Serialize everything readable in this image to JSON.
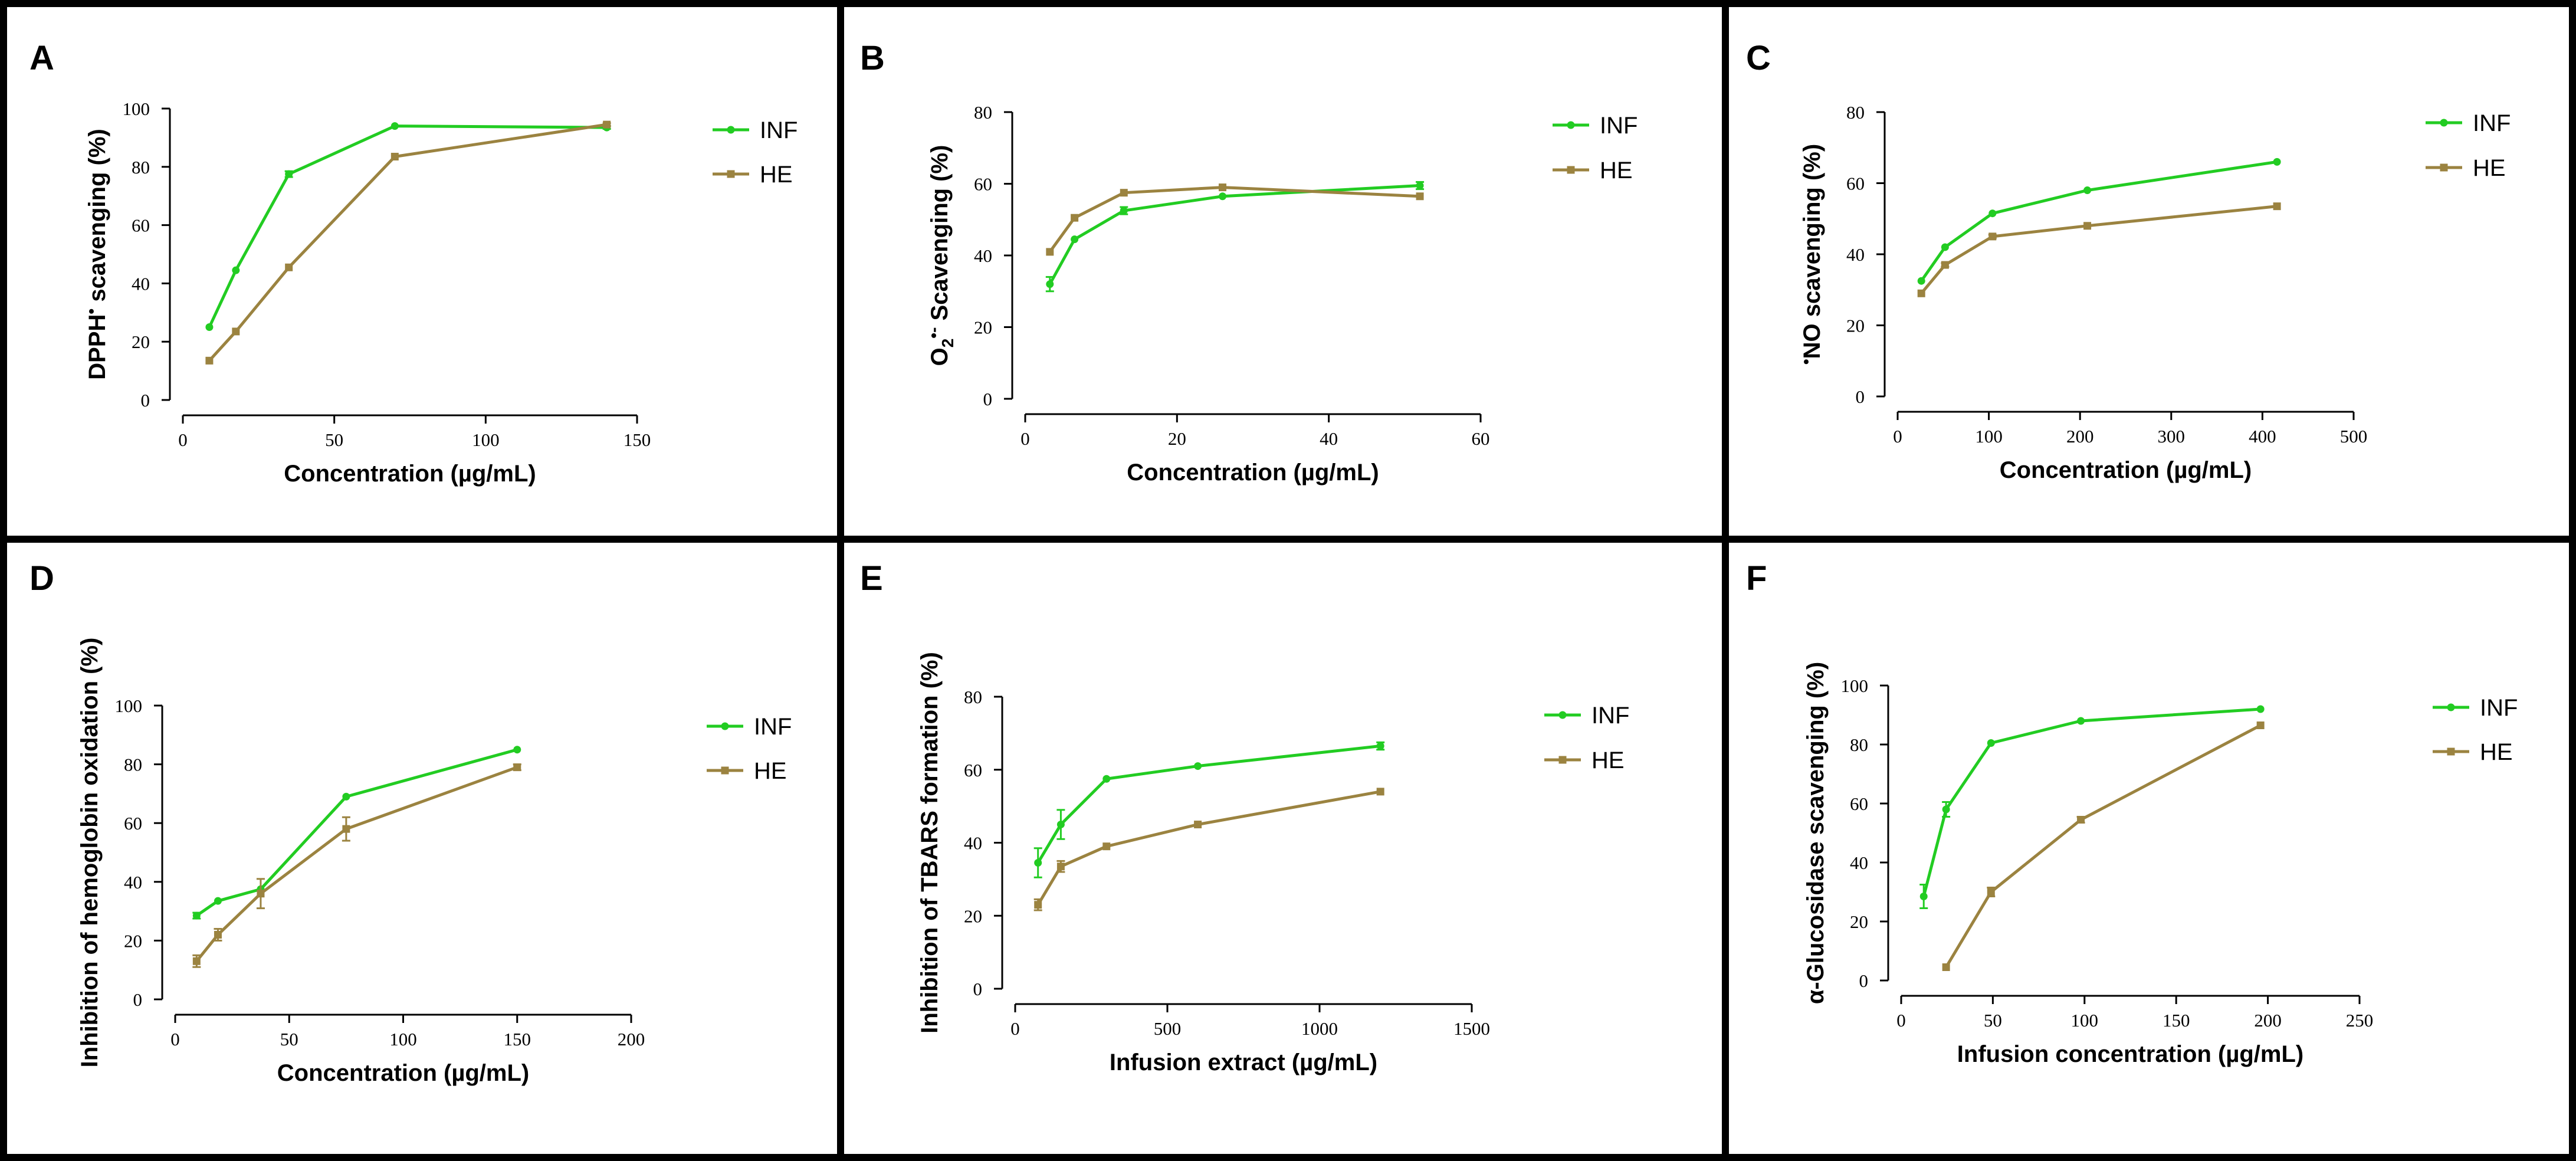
{
  "colors": {
    "inf": "#22cc22",
    "he": "#9b8340",
    "axis": "#000000",
    "frame": "#000000"
  },
  "legend": {
    "inf_label": "INF",
    "he_label": "HE"
  },
  "chart_data": [
    {
      "panel": "A",
      "type": "line",
      "xlabel": "Concentration (µg/mL)",
      "ylabel_parts": [
        {
          "t": "DPPH"
        },
        {
          "t": "•",
          "sup": true
        },
        {
          "t": " scavenging (%)"
        }
      ],
      "xlim": [
        0,
        150
      ],
      "ylim": [
        0,
        100
      ],
      "xticks": [
        0,
        50,
        100,
        150
      ],
      "yticks": [
        0,
        20,
        40,
        60,
        80,
        100
      ],
      "series": [
        {
          "name": "INF",
          "x": [
            8.75,
            17.5,
            35,
            70,
            140
          ],
          "y": [
            25,
            44.5,
            77.5,
            94,
            93.5
          ],
          "err": [
            0,
            0,
            1,
            0,
            0.5
          ]
        },
        {
          "name": "HE",
          "x": [
            8.75,
            17.5,
            35,
            70,
            140
          ],
          "y": [
            13.5,
            23.5,
            45.5,
            83.5,
            94.5
          ],
          "err": [
            0,
            0,
            0,
            0,
            0.5
          ]
        }
      ]
    },
    {
      "panel": "B",
      "type": "line",
      "xlabel": "Concentration (µg/mL)",
      "ylabel_parts": [
        {
          "t": "O"
        },
        {
          "t": "2",
          "sub": true
        },
        {
          "t": "•-",
          "sup": true
        },
        {
          "t": " Scavenging (%)"
        }
      ],
      "xlim": [
        0,
        60
      ],
      "ylim": [
        0,
        80
      ],
      "xticks": [
        0,
        20,
        40,
        60
      ],
      "yticks": [
        0,
        20,
        40,
        60,
        80
      ],
      "series": [
        {
          "name": "INF",
          "x": [
            3.25,
            6.5,
            13,
            26,
            52
          ],
          "y": [
            32,
            44.5,
            52.5,
            56.5,
            59.5
          ],
          "err": [
            2,
            0,
            1,
            0,
            1
          ]
        },
        {
          "name": "HE",
          "x": [
            3.25,
            6.5,
            13,
            26,
            52
          ],
          "y": [
            41,
            50.5,
            57.5,
            59,
            56.5
          ],
          "err": [
            0,
            0,
            0,
            0,
            0
          ]
        }
      ]
    },
    {
      "panel": "C",
      "type": "line",
      "xlabel": "Concentration (µg/mL)",
      "ylabel_parts": [
        {
          "t": "•",
          "sup": true
        },
        {
          "t": "NO scavenging (%)"
        }
      ],
      "xlim": [
        0,
        500
      ],
      "ylim": [
        0,
        80
      ],
      "xticks": [
        0,
        100,
        200,
        300,
        400,
        500
      ],
      "yticks": [
        0,
        20,
        40,
        60,
        80
      ],
      "series": [
        {
          "name": "INF",
          "x": [
            26,
            52,
            104,
            208,
            416
          ],
          "y": [
            32.5,
            42,
            51.5,
            58,
            66
          ],
          "err": [
            0,
            0,
            0,
            0,
            0
          ]
        },
        {
          "name": "HE",
          "x": [
            26,
            52,
            104,
            208,
            416
          ],
          "y": [
            29,
            37,
            45,
            48,
            53.5
          ],
          "err": [
            0,
            0.5,
            0.5,
            0,
            0
          ]
        }
      ]
    },
    {
      "panel": "D",
      "type": "line",
      "xlabel": "Concentration (µg/mL)",
      "ylabel_parts": [
        {
          "t": "Inhibition of hemoglobin oxidation (%)"
        }
      ],
      "xlim": [
        0,
        200
      ],
      "ylim": [
        0,
        100
      ],
      "xticks": [
        0,
        50,
        100,
        150,
        200
      ],
      "yticks": [
        0,
        20,
        40,
        60,
        80,
        100
      ],
      "series": [
        {
          "name": "INF",
          "x": [
            9.4,
            18.75,
            37.5,
            75,
            150
          ],
          "y": [
            28.5,
            33.5,
            37.5,
            69,
            85
          ],
          "err": [
            1,
            0,
            0,
            0,
            0
          ]
        },
        {
          "name": "HE",
          "x": [
            9.4,
            18.75,
            37.5,
            75,
            150
          ],
          "y": [
            13,
            22,
            36,
            58,
            79
          ],
          "err": [
            2,
            2,
            5,
            4,
            1
          ]
        }
      ]
    },
    {
      "panel": "E",
      "type": "line",
      "xlabel": "Infusion extract (µg/mL)",
      "ylabel_parts": [
        {
          "t": "Inhibition of TBARS formation (%)"
        }
      ],
      "xlim": [
        0,
        1500
      ],
      "ylim": [
        0,
        80
      ],
      "xticks": [
        0,
        500,
        1000,
        1500
      ],
      "yticks": [
        0,
        20,
        40,
        60,
        80
      ],
      "series": [
        {
          "name": "INF",
          "x": [
            75,
            150,
            300,
            600,
            1200
          ],
          "y": [
            34.5,
            45,
            57.5,
            61,
            66.5
          ],
          "err": [
            4,
            4,
            0,
            0,
            1
          ]
        },
        {
          "name": "HE",
          "x": [
            75,
            150,
            300,
            600,
            1200
          ],
          "y": [
            23,
            33.5,
            39,
            45,
            54
          ],
          "err": [
            1.5,
            1.5,
            0,
            0,
            0
          ]
        }
      ]
    },
    {
      "panel": "F",
      "type": "line",
      "xlabel": "Infusion concentration (µg/mL)",
      "ylabel_parts": [
        {
          "t": "α-Glucosidase scavenging (%)"
        }
      ],
      "xlim": [
        0,
        250
      ],
      "ylim": [
        0,
        100
      ],
      "xticks": [
        0,
        50,
        100,
        150,
        200,
        250
      ],
      "yticks": [
        0,
        20,
        40,
        60,
        80,
        100
      ],
      "series": [
        {
          "name": "INF",
          "x": [
            12.3,
            24.5,
            49,
            98,
            196
          ],
          "y": [
            28.5,
            58,
            80.5,
            88,
            92
          ],
          "err": [
            4,
            2.5,
            0,
            0,
            0
          ]
        },
        {
          "name": "HE",
          "x": [
            24.5,
            49,
            98,
            196
          ],
          "y": [
            4.5,
            30,
            54.5,
            86.5
          ],
          "err": [
            0,
            1.5,
            1,
            0
          ]
        }
      ]
    }
  ]
}
